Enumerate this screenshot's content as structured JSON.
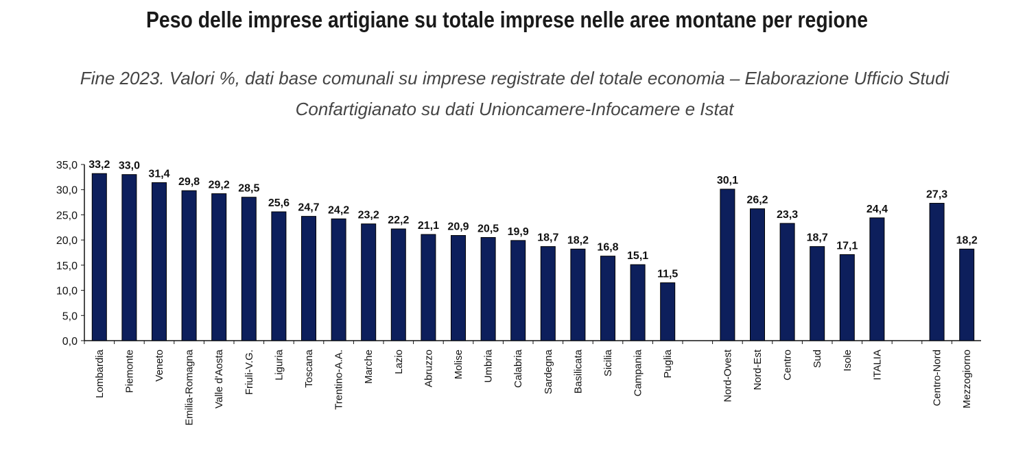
{
  "title": "Peso delle imprese artigiane su totale imprese nelle aree montane per regione",
  "subtitle": "Fine 2023. Valori %, dati base comunali su imprese registrate del totale economia – Elaborazione Ufficio Studi Confartigianato su dati Unioncamere-Infocamere e Istat",
  "chart_data": {
    "type": "bar",
    "title": "Peso delle imprese artigiane su totale imprese nelle aree montane per regione",
    "subtitle": "Fine 2023. Valori %, dati base comunali su imprese registrate del totale economia – Elaborazione Ufficio Studi Confartigianato su dati Unioncamere-Infocamere e Istat",
    "xlabel": "",
    "ylabel": "",
    "ylim": [
      0,
      35
    ],
    "yticks": [
      "0,0",
      "5,0",
      "10,0",
      "15,0",
      "20,0",
      "25,0",
      "30,0",
      "35,0"
    ],
    "grid": false,
    "bar_color": "#0d1f5c",
    "groups": [
      {
        "categories": [
          "Lombardia",
          "Piemonte",
          "Veneto",
          "Emilia-Romagna",
          "Valle d'Aosta",
          "Friuli-V.G.",
          "Liguria",
          "Toscana",
          "Trentino-A.A.",
          "Marche",
          "Lazio",
          "Abruzzo",
          "Molise",
          "Umbria",
          "Calabria",
          "Sardegna",
          "Basilicata",
          "Sicilia",
          "Campania",
          "Puglia"
        ],
        "values": [
          33.2,
          33.0,
          31.4,
          29.8,
          29.2,
          28.5,
          25.6,
          24.7,
          24.2,
          23.2,
          22.2,
          21.1,
          20.9,
          20.5,
          19.9,
          18.7,
          18.2,
          16.8,
          15.1,
          11.5
        ],
        "labels": [
          "33,2",
          "33,0",
          "31,4",
          "29,8",
          "29,2",
          "28,5",
          "25,6",
          "24,7",
          "24,2",
          "23,2",
          "22,2",
          "21,1",
          "20,9",
          "20,5",
          "19,9",
          "18,7",
          "18,2",
          "16,8",
          "15,1",
          "11,5"
        ]
      },
      {
        "categories": [
          "Nord-Ovest",
          "Nord-Est",
          "Centro",
          "Sud",
          "Isole",
          "ITALIA"
        ],
        "values": [
          30.1,
          26.2,
          23.3,
          18.7,
          17.1,
          24.4
        ],
        "labels": [
          "30,1",
          "26,2",
          "23,3",
          "18,7",
          "17,1",
          "24,4"
        ]
      },
      {
        "categories": [
          "Centro-Nord",
          "Mezzogiorno"
        ],
        "values": [
          27.3,
          18.2
        ],
        "labels": [
          "27,3",
          "18,2"
        ]
      }
    ]
  }
}
